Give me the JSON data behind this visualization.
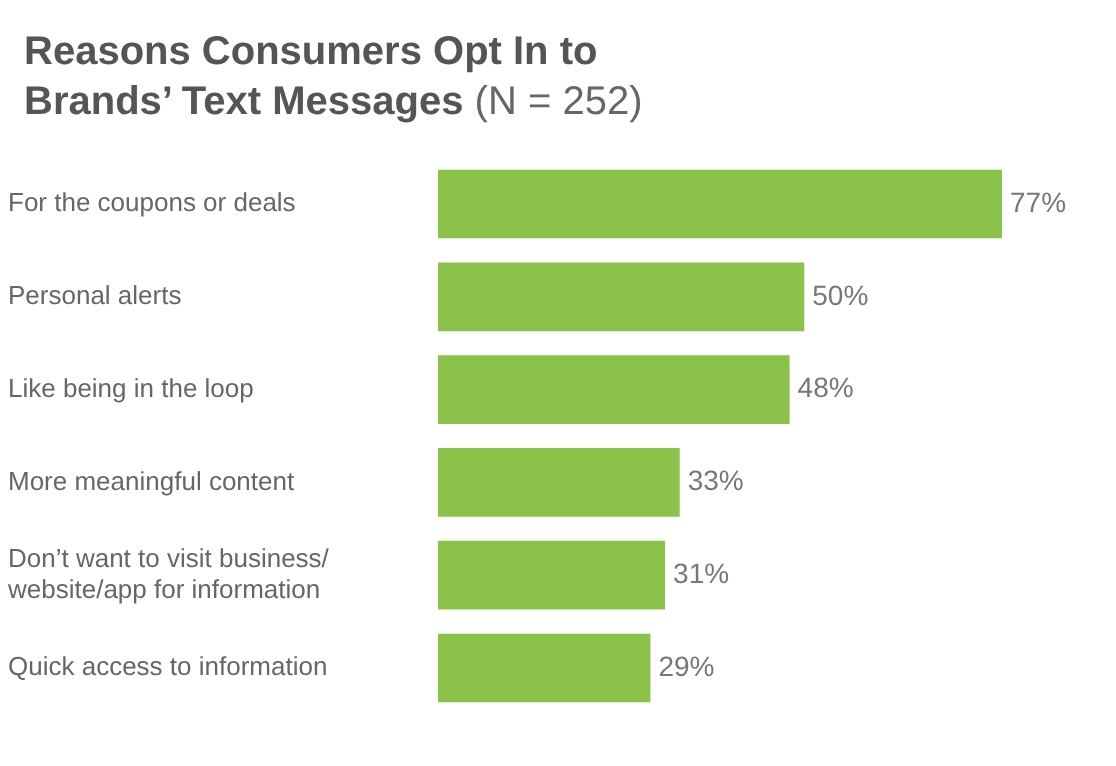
{
  "chart_data": {
    "type": "bar",
    "orientation": "horizontal",
    "title": "Reasons Consumers Opt In to Brands’ Text Messages",
    "subtitle": "(N = 252)",
    "categories": [
      "For the coupons or deals",
      "Personal alerts",
      "Like being in the loop",
      "More meaningful content",
      "Don’t want to visit business/website/app for information",
      "Quick access to information"
    ],
    "values": [
      77,
      50,
      48,
      33,
      31,
      29
    ],
    "value_labels": [
      "77%",
      "50%",
      "48%",
      "33%",
      "31%",
      "29%"
    ],
    "color": "#8bc34a"
  }
}
